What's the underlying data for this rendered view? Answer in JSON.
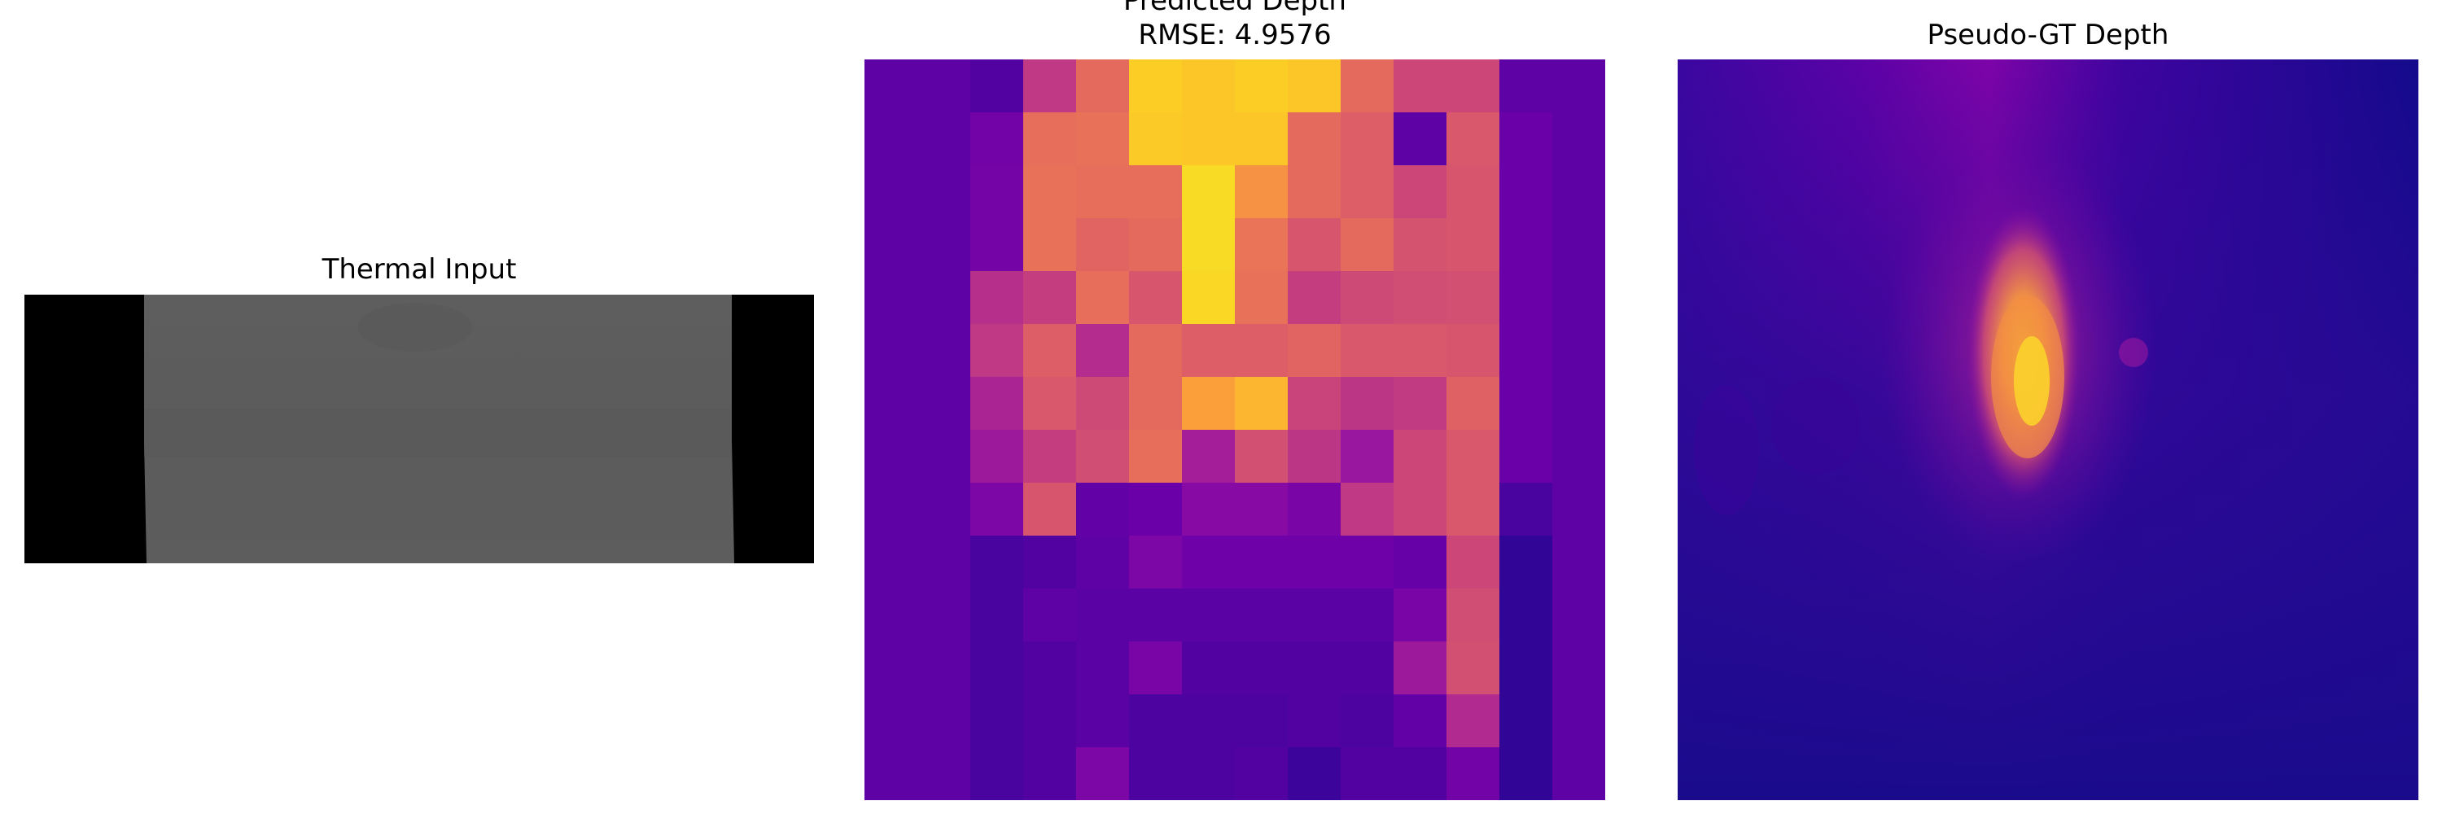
{
  "panels": {
    "thermal": {
      "title": "Thermal Input"
    },
    "predicted": {
      "title_line1": "Predicted Depth",
      "title_line2": "RMSE: 4.9576"
    },
    "gt": {
      "title": "Pseudo-GT Depth"
    }
  },
  "colormap": {
    "name": "plasma",
    "stops": [
      "#0d0887",
      "#41049d",
      "#6a00a8",
      "#8f0da4",
      "#b12a90",
      "#cc4778",
      "#e16462",
      "#f2844b",
      "#fca636",
      "#fcce25",
      "#f0f921"
    ]
  },
  "predicted_grid": {
    "rows": 14,
    "cols": 14,
    "levels": [
      [
        0.17,
        0.17,
        0.14,
        0.45,
        0.62,
        0.9,
        0.88,
        0.9,
        0.88,
        0.62,
        0.5,
        0.5,
        0.17,
        0.17
      ],
      [
        0.17,
        0.17,
        0.22,
        0.63,
        0.64,
        0.89,
        0.88,
        0.88,
        0.62,
        0.58,
        0.17,
        0.56,
        0.2,
        0.17
      ],
      [
        0.17,
        0.17,
        0.23,
        0.64,
        0.63,
        0.63,
        0.93,
        0.74,
        0.62,
        0.58,
        0.5,
        0.55,
        0.2,
        0.17
      ],
      [
        0.17,
        0.17,
        0.23,
        0.64,
        0.6,
        0.62,
        0.93,
        0.65,
        0.55,
        0.62,
        0.54,
        0.55,
        0.2,
        0.17
      ],
      [
        0.17,
        0.17,
        0.42,
        0.47,
        0.63,
        0.55,
        0.92,
        0.64,
        0.47,
        0.51,
        0.52,
        0.53,
        0.2,
        0.17
      ],
      [
        0.17,
        0.17,
        0.45,
        0.58,
        0.41,
        0.62,
        0.58,
        0.58,
        0.6,
        0.56,
        0.56,
        0.55,
        0.2,
        0.17
      ],
      [
        0.17,
        0.17,
        0.38,
        0.56,
        0.51,
        0.62,
        0.78,
        0.84,
        0.49,
        0.44,
        0.46,
        0.59,
        0.2,
        0.17
      ],
      [
        0.17,
        0.17,
        0.34,
        0.47,
        0.52,
        0.63,
        0.36,
        0.53,
        0.44,
        0.33,
        0.5,
        0.56,
        0.2,
        0.17
      ],
      [
        0.17,
        0.17,
        0.25,
        0.55,
        0.18,
        0.2,
        0.28,
        0.28,
        0.24,
        0.45,
        0.5,
        0.56,
        0.12,
        0.17
      ],
      [
        0.17,
        0.17,
        0.12,
        0.14,
        0.17,
        0.25,
        0.21,
        0.21,
        0.21,
        0.21,
        0.19,
        0.5,
        0.07,
        0.17
      ],
      [
        0.17,
        0.17,
        0.12,
        0.17,
        0.16,
        0.16,
        0.16,
        0.16,
        0.16,
        0.16,
        0.24,
        0.52,
        0.07,
        0.17
      ],
      [
        0.17,
        0.17,
        0.12,
        0.14,
        0.16,
        0.24,
        0.14,
        0.14,
        0.14,
        0.14,
        0.34,
        0.53,
        0.07,
        0.17
      ],
      [
        0.17,
        0.17,
        0.12,
        0.14,
        0.16,
        0.13,
        0.13,
        0.13,
        0.14,
        0.13,
        0.18,
        0.4,
        0.07,
        0.17
      ],
      [
        0.17,
        0.17,
        0.12,
        0.14,
        0.25,
        0.13,
        0.13,
        0.14,
        0.09,
        0.14,
        0.14,
        0.22,
        0.07,
        0.17
      ]
    ]
  }
}
